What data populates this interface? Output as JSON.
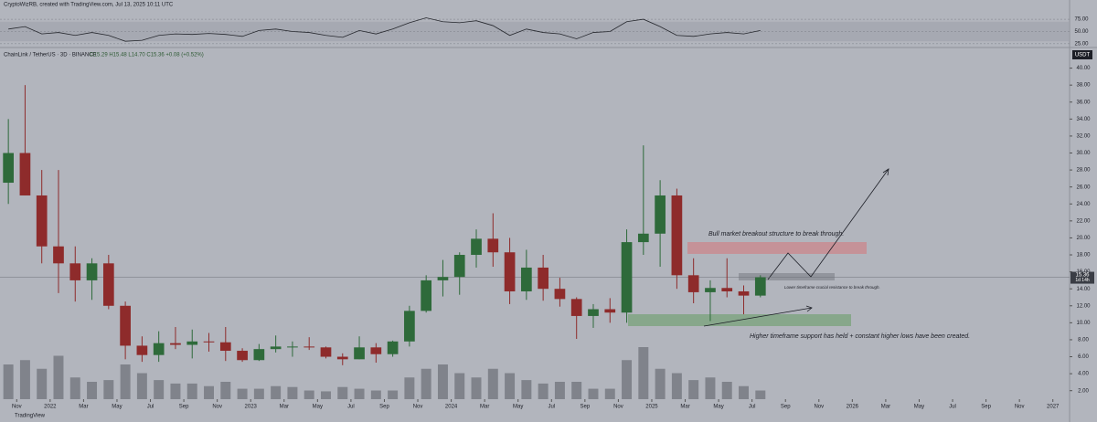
{
  "header": "CryptoWizRB, created with TradingView.com, Jul 13, 2025 10:11 UTC",
  "chart_data": {
    "type": "candlestick",
    "legend": "ChainLink / TetherUS · 3D · BINANCE",
    "ohlc_readout": "O15.29 H15.48 L14.70 C15.36 +0.08 (+0.52%)",
    "currency": "USDT",
    "last_price": {
      "value": 15.36,
      "label": "15.36"
    },
    "countdown": "1d 14h",
    "x": [
      "2021-10",
      "2021-11",
      "2021-12",
      "2022-01",
      "2022-02",
      "2022-03",
      "2022-04",
      "2022-05",
      "2022-06",
      "2022-07",
      "2022-08",
      "2022-09",
      "2022-10",
      "2022-11",
      "2022-12",
      "2023-01",
      "2023-02",
      "2023-03",
      "2023-04",
      "2023-05",
      "2023-06",
      "2023-07",
      "2023-08",
      "2023-09",
      "2023-10",
      "2023-11",
      "2023-12",
      "2024-01",
      "2024-02",
      "2024-03",
      "2024-04",
      "2024-05",
      "2024-06",
      "2024-07",
      "2024-08",
      "2024-09",
      "2024-10",
      "2024-11",
      "2024-12",
      "2025-01",
      "2025-02",
      "2025-03",
      "2025-04",
      "2025-05",
      "2025-06",
      "2025-07"
    ],
    "open": [
      26.5,
      30,
      25,
      19,
      17,
      15,
      17,
      12,
      7.3,
      6.2,
      7.6,
      7.4,
      7.8,
      7.7,
      6.7,
      5.6,
      6.9,
      7.2,
      7.2,
      7.1,
      6.0,
      5.7,
      7.1,
      6.3,
      7.8,
      11.4,
      15,
      15.4,
      18,
      19.9,
      18.3,
      13.7,
      16.5,
      14,
      12.8,
      10.8,
      11.6,
      11.2,
      19.5,
      20.5,
      25,
      15.6,
      13.6,
      14.1,
      13.7,
      13.2
    ],
    "high": [
      34,
      38,
      28,
      28,
      19,
      17.6,
      18,
      12.5,
      8.4,
      9,
      9.5,
      9.2,
      8.8,
      9.5,
      7.0,
      7.5,
      8.5,
      7.8,
      8.3,
      7.2,
      6.4,
      8.4,
      7.6,
      7.9,
      12,
      15.6,
      17.4,
      18.3,
      21,
      22.9,
      20,
      18.6,
      18,
      15.3,
      13,
      12.2,
      12.9,
      21,
      30.9,
      26.8,
      25.8,
      17.6,
      15,
      17.6,
      14.4,
      15.6
    ],
    "low": [
      24,
      25,
      17,
      13.5,
      12.5,
      12.7,
      11.6,
      5.7,
      5.4,
      5.4,
      6.9,
      5.8,
      6.6,
      5.5,
      5.4,
      5.5,
      6.5,
      6.0,
      6.8,
      5.8,
      5.0,
      5.7,
      5.3,
      6.0,
      7.2,
      11.2,
      13.1,
      13.3,
      16.5,
      16.6,
      12.2,
      12.7,
      12.6,
      11.9,
      8.1,
      9.4,
      10.0,
      10.0,
      18.0,
      16.6,
      14.0,
      12.3,
      10.2,
      13.0,
      11.0,
      13.0
    ],
    "close": [
      30,
      25,
      19,
      17,
      15,
      17,
      12,
      7.3,
      6.2,
      7.6,
      7.4,
      7.8,
      7.7,
      6.7,
      5.6,
      6.9,
      7.2,
      7.2,
      7.1,
      6.0,
      5.7,
      7.1,
      6.3,
      7.8,
      11.4,
      15,
      15.4,
      18,
      19.9,
      18.3,
      13.7,
      16.5,
      14,
      12.8,
      10.8,
      11.6,
      11.2,
      19.5,
      20.5,
      25,
      15.6,
      13.6,
      14.1,
      13.7,
      13.2,
      15.36
    ],
    "volume": [
      40,
      45,
      35,
      50,
      25,
      20,
      22,
      40,
      30,
      22,
      18,
      18,
      15,
      20,
      12,
      12,
      15,
      14,
      10,
      9,
      14,
      12,
      10,
      10,
      25,
      35,
      40,
      30,
      25,
      35,
      30,
      22,
      18,
      20,
      20,
      12,
      12,
      45,
      60,
      35,
      30,
      22,
      25,
      20,
      15,
      10
    ],
    "rsi": [
      55,
      60,
      45,
      48,
      42,
      48,
      42,
      30,
      32,
      42,
      45,
      44,
      46,
      44,
      40,
      52,
      55,
      50,
      48,
      42,
      38,
      52,
      45,
      55,
      68,
      78,
      70,
      68,
      72,
      62,
      42,
      55,
      48,
      45,
      35,
      48,
      50,
      70,
      75,
      60,
      42,
      40,
      45,
      48,
      45,
      52
    ],
    "up_color": "#2e6a3a",
    "down_color": "#8e2b2b",
    "volume_color": "#6b6e76",
    "rsi_color": "#26282e",
    "xlim": [
      "2021-10",
      "2027-02"
    ],
    "ylim": [
      1,
      42
    ],
    "volume_lim": [
      0,
      100
    ],
    "rsi_lim": [
      21,
      92
    ],
    "rsi_ticks": [
      {
        "value": 75,
        "label": "75.00"
      },
      {
        "value": 50,
        "label": "50.00"
      },
      {
        "value": 25,
        "label": "25.00"
      }
    ],
    "yticks": [
      {
        "value": 40,
        "label": "40.00"
      },
      {
        "value": 38,
        "label": "38.00"
      },
      {
        "value": 36,
        "label": "36.00"
      },
      {
        "value": 34,
        "label": "34.00"
      },
      {
        "value": 32,
        "label": "32.00"
      },
      {
        "value": 30,
        "label": "30.00"
      },
      {
        "value": 28,
        "label": "28.00"
      },
      {
        "value": 26,
        "label": "26.00"
      },
      {
        "value": 24,
        "label": "24.00"
      },
      {
        "value": 22,
        "label": "22.00"
      },
      {
        "value": 20,
        "label": "20.00"
      },
      {
        "value": 18,
        "label": "18.00"
      },
      {
        "value": 16,
        "label": "16.00"
      },
      {
        "value": 14,
        "label": "14.00"
      },
      {
        "value": 12,
        "label": "12.00"
      },
      {
        "value": 10,
        "label": "10.00"
      },
      {
        "value": 8,
        "label": "8.00"
      },
      {
        "value": 6,
        "label": "6.00"
      },
      {
        "value": 4,
        "label": "4.00"
      },
      {
        "value": 2,
        "label": "2.00"
      }
    ],
    "xticks": [
      {
        "value": "2021-11",
        "label": "Nov"
      },
      {
        "value": "2022-01",
        "label": "2022"
      },
      {
        "value": "2022-03",
        "label": "Mar"
      },
      {
        "value": "2022-05",
        "label": "May"
      },
      {
        "value": "2022-07",
        "label": "Jul"
      },
      {
        "value": "2022-09",
        "label": "Sep"
      },
      {
        "value": "2022-11",
        "label": "Nov"
      },
      {
        "value": "2023-01",
        "label": "2023"
      },
      {
        "value": "2023-03",
        "label": "Mar"
      },
      {
        "value": "2023-05",
        "label": "May"
      },
      {
        "value": "2023-07",
        "label": "Jul"
      },
      {
        "value": "2023-09",
        "label": "Sep"
      },
      {
        "value": "2023-11",
        "label": "Nov"
      },
      {
        "value": "2024-01",
        "label": "2024"
      },
      {
        "value": "2024-03",
        "label": "Mar"
      },
      {
        "value": "2024-05",
        "label": "May"
      },
      {
        "value": "2024-07",
        "label": "Jul"
      },
      {
        "value": "2024-09",
        "label": "Sep"
      },
      {
        "value": "2024-11",
        "label": "Nov"
      },
      {
        "value": "2025-01",
        "label": "2025"
      },
      {
        "value": "2025-03",
        "label": "Mar"
      },
      {
        "value": "2025-05",
        "label": "May"
      },
      {
        "value": "2025-07",
        "label": "Jul"
      },
      {
        "value": "2025-09",
        "label": "Sep"
      },
      {
        "value": "2025-11",
        "label": "Nov"
      },
      {
        "value": "2026-01",
        "label": "2026"
      },
      {
        "value": "2026-03",
        "label": "Mar"
      },
      {
        "value": "2026-05",
        "label": "May"
      },
      {
        "value": "2026-07",
        "label": "Jul"
      },
      {
        "value": "2026-09",
        "label": "Sep"
      },
      {
        "value": "2026-11",
        "label": "Nov"
      },
      {
        "value": "2027-01",
        "label": "2027"
      }
    ],
    "annotations": [
      "Bull market breakout structure to break through.",
      "Lower timeframe crucial resistance to break through.",
      "Higher timeframe support has held + constant higher lows have been created."
    ]
  },
  "watermark": "TradingView"
}
